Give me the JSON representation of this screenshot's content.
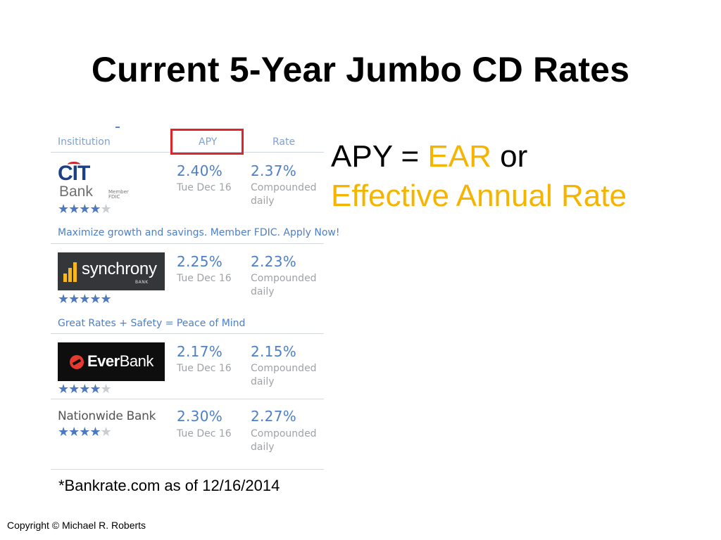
{
  "slide": {
    "title": "Current 5-Year Jumbo CD Rates",
    "source_note": "*Bankrate.com as of 12/16/2014",
    "copyright": "Copyright © Michael R. Roberts"
  },
  "definition": {
    "line1_a": "APY = ",
    "line1_b": "EAR",
    "line1_c": " or",
    "line2": "Effective Annual Rate",
    "accent_color": "#f5b400"
  },
  "table": {
    "headers": {
      "institution": "Insititution",
      "apy": "APY",
      "rate": "Rate"
    },
    "highlight_color": "#e0242a",
    "link_color": "#4d7fc6",
    "rows": [
      {
        "bank": "CIT Bank",
        "logo": {
          "word": "CIT",
          "sub": "Bank",
          "badge": "Member FDIC"
        },
        "apy": "2.40%",
        "date": "Tue Dec 16",
        "rate": "2.37%",
        "compounding_1": "Compounded",
        "compounding_2": "daily",
        "stars": 4,
        "tagline": "Maximize growth and savings. Member FDIC. Apply Now!"
      },
      {
        "bank": "Synchrony Bank",
        "logo": {
          "word": "synchrony",
          "sub": "BANK"
        },
        "apy": "2.25%",
        "date": "Tue Dec 16",
        "rate": "2.23%",
        "compounding_1": "Compounded",
        "compounding_2": "daily",
        "stars": 5,
        "tagline": "Great Rates + Safety = Peace of Mind"
      },
      {
        "bank": "EverBank",
        "logo": {
          "word_bold": "Ever",
          "word_light": "Bank"
        },
        "apy": "2.17%",
        "date": "Tue Dec 16",
        "rate": "2.15%",
        "compounding_1": "Compounded",
        "compounding_2": "daily",
        "stars": 4
      },
      {
        "bank": "Nationwide Bank",
        "apy": "2.30%",
        "date": "Tue Dec 16",
        "rate": "2.27%",
        "compounding_1": "Compounded",
        "compounding_2": "daily",
        "stars": 4
      }
    ]
  }
}
